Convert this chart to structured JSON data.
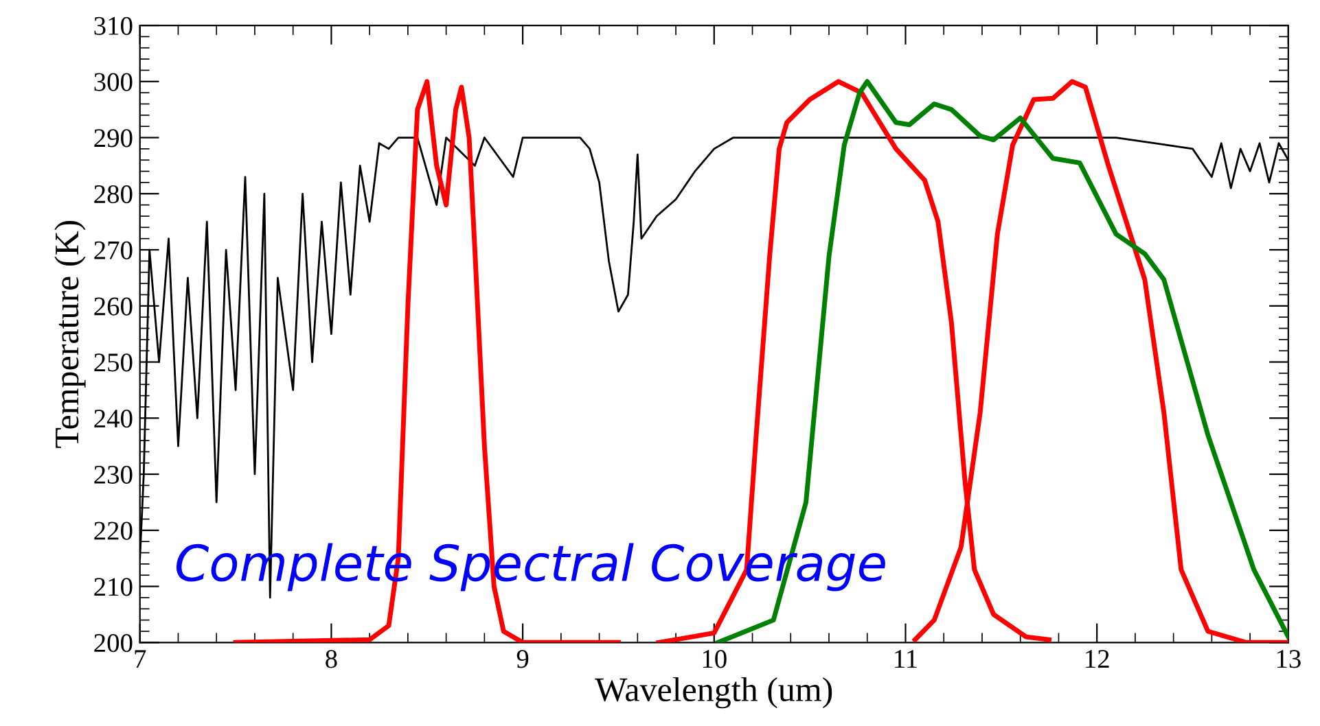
{
  "chart_data": {
    "type": "line",
    "xlabel": "Wavelength (um)",
    "ylabel": "Temperature (K)",
    "xlim": [
      7,
      13
    ],
    "xticks": [
      7,
      8,
      9,
      10,
      11,
      12,
      13
    ],
    "ylim": [
      200,
      310
    ],
    "yticks": [
      200,
      210,
      220,
      230,
      240,
      250,
      260,
      270,
      280,
      290,
      300,
      310
    ],
    "grid": false,
    "marker": "none",
    "line_style": "solid",
    "annotations": [
      "Complete Spectral Coverage"
    ],
    "series": [
      {
        "color": "#000000",
        "x": [
          7.0,
          7.02,
          7.05,
          7.1,
          7.15,
          7.2,
          7.25,
          7.3,
          7.35,
          7.4,
          7.45,
          7.5,
          7.55,
          7.6,
          7.65,
          7.68,
          7.72,
          7.8,
          7.85,
          7.9,
          7.95,
          8.0,
          8.05,
          8.1,
          8.15,
          8.2,
          8.25,
          8.3,
          8.35,
          8.45,
          8.55,
          8.6,
          8.75,
          8.8,
          8.95,
          9.0,
          9.15,
          9.3,
          9.35,
          9.4,
          9.45,
          9.5,
          9.55,
          9.58,
          9.6,
          9.62,
          9.7,
          9.8,
          9.9,
          10.0,
          10.1,
          10.3,
          10.5,
          10.7,
          10.9,
          11.1,
          11.3,
          11.5,
          11.7,
          11.9,
          12.1,
          12.3,
          12.5,
          12.6,
          12.65,
          12.7,
          12.75,
          12.8,
          12.85,
          12.9,
          12.95,
          13.0
        ],
        "values": [
          215,
          230,
          270,
          250,
          272,
          235,
          265,
          240,
          275,
          225,
          270,
          245,
          283,
          230,
          280,
          208,
          265,
          245,
          280,
          250,
          275,
          255,
          282,
          262,
          285,
          275,
          289,
          288,
          290,
          290,
          278,
          290,
          285,
          290,
          283,
          290,
          290,
          290,
          288,
          282,
          268,
          259,
          262,
          275,
          287,
          272,
          276,
          279,
          284,
          288,
          290,
          290,
          290,
          290,
          290,
          290,
          290,
          290,
          290,
          290,
          290,
          289,
          288,
          283,
          289,
          281,
          288,
          284,
          289,
          282,
          289,
          286
        ]
      },
      {
        "color": "#ff0000",
        "x": [
          7.5,
          8.2,
          8.3,
          8.35,
          8.4,
          8.45,
          8.5,
          8.55,
          8.6,
          8.65,
          8.68,
          8.72,
          8.75,
          8.8,
          8.85,
          8.9,
          9.0,
          9.5
        ],
        "values": [
          200,
          200.5,
          203,
          215,
          260,
          295,
          300,
          285,
          278,
          295,
          299,
          290,
          270,
          235,
          210,
          202,
          200,
          200
        ]
      },
      {
        "color": "#ff0000",
        "x": [
          9.71,
          10.0,
          10.17,
          10.22,
          10.29,
          10.34,
          10.38,
          10.5,
          10.65,
          10.77,
          10.95,
          11.1,
          11.17,
          11.24,
          11.31,
          11.36,
          11.46,
          11.63,
          11.75
        ],
        "values": [
          200,
          201.7,
          213,
          237,
          268.8,
          288,
          292.7,
          296.8,
          300,
          298,
          288,
          282.4,
          275,
          257,
          229,
          213,
          205,
          201,
          200.5
        ]
      },
      {
        "color": "#ff0000",
        "x": [
          11.05,
          11.15,
          11.29,
          11.39,
          11.48,
          11.56,
          11.67,
          11.77,
          11.87,
          11.94,
          12.06,
          12.25,
          12.35,
          12.44,
          12.58,
          12.78,
          13.0
        ],
        "values": [
          200.5,
          204,
          217,
          241,
          272.8,
          288.7,
          296.8,
          297,
          300,
          299,
          285,
          264.7,
          241,
          213,
          202,
          200,
          200
        ]
      },
      {
        "color": "#008000",
        "x": [
          10.02,
          10.31,
          10.48,
          10.6,
          10.68,
          10.76,
          10.8,
          10.95,
          11.02,
          11.15,
          11.24,
          11.39,
          11.46,
          11.6,
          11.77,
          11.91,
          12.1,
          12.25,
          12.35,
          12.58,
          12.82,
          13.0
        ],
        "values": [
          200,
          204,
          225,
          268.8,
          288.7,
          298,
          300,
          292.7,
          292.3,
          296,
          295,
          290.3,
          289.6,
          293.5,
          286.3,
          285.5,
          272.8,
          269.3,
          264.7,
          237,
          213,
          201
        ]
      }
    ]
  }
}
